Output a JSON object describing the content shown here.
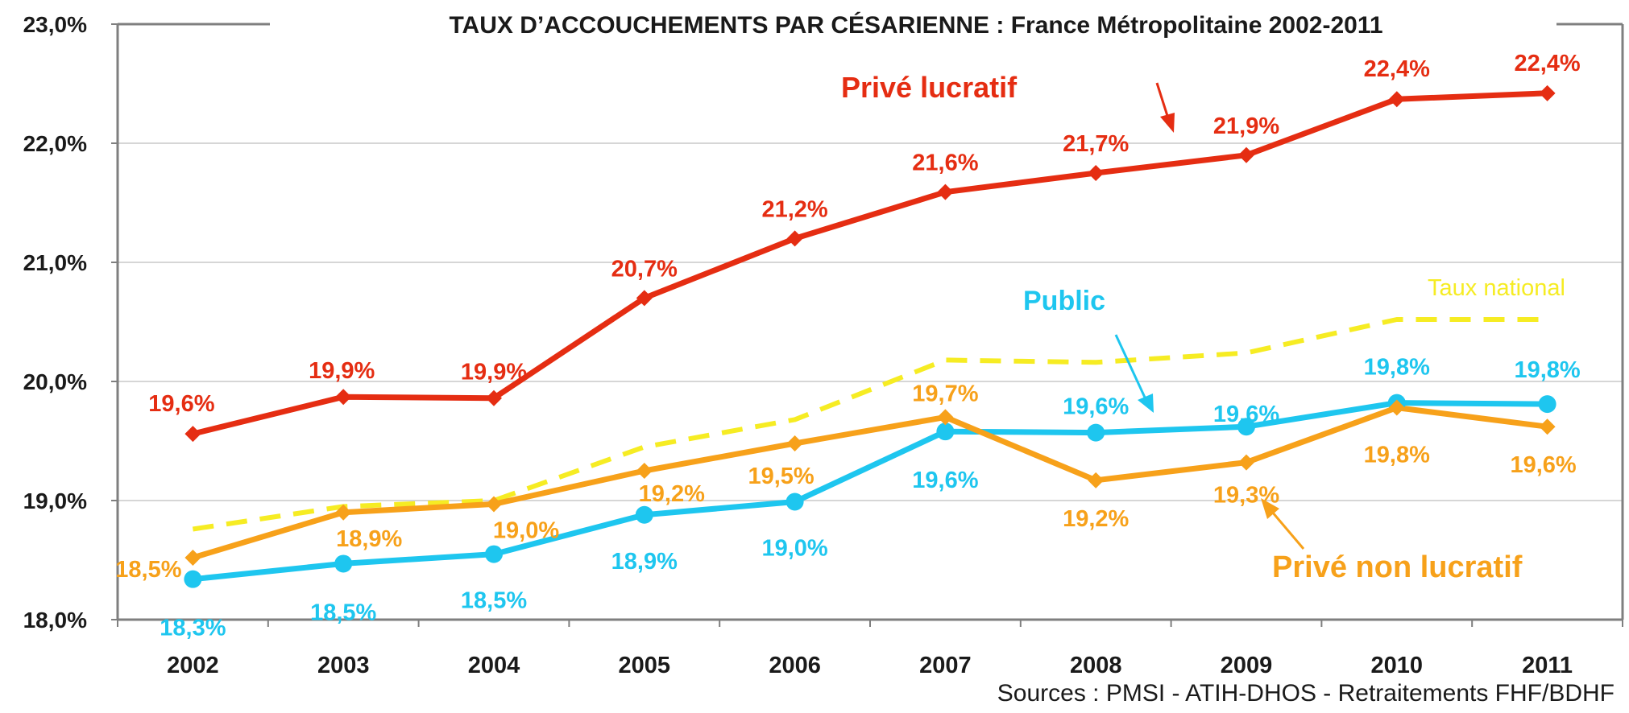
{
  "chart_data": {
    "type": "line",
    "title": "TAUX D’ACCOUCHEMENTS PAR CÉSARIENNE : France Métropolitaine 2002-2011",
    "source": "Sources : PMSI - ATIH-DHOS - Retraitements FHF/BDHF",
    "categories": [
      "2002",
      "2003",
      "2004",
      "2005",
      "2006",
      "2007",
      "2008",
      "2009",
      "2010",
      "2011"
    ],
    "ylim": [
      18.0,
      23.0
    ],
    "yticks": [
      {
        "value": 18.0,
        "label": "18,0%"
      },
      {
        "value": 19.0,
        "label": "19,0%"
      },
      {
        "value": 20.0,
        "label": "20,0%"
      },
      {
        "value": 21.0,
        "label": "21,0%"
      },
      {
        "value": 22.0,
        "label": "22,0%"
      },
      {
        "value": 23.0,
        "label": "23,0%"
      }
    ],
    "gridlines": true,
    "series": [
      {
        "key": "prive-lucratif",
        "name": "Privé lucratif",
        "color": "#e52d12",
        "marker": "diamond",
        "values": [
          19.56,
          19.87,
          19.86,
          20.7,
          21.2,
          21.59,
          21.75,
          21.9,
          22.37,
          22.42
        ],
        "labels": [
          "19,6%",
          "19,9%",
          "19,9%",
          "20,7%",
          "21,2%",
          "21,6%",
          "21,7%",
          "21,9%",
          "22,4%",
          "22,4%"
        ]
      },
      {
        "key": "public",
        "name": "Public",
        "color": "#1ec6ef",
        "marker": "circle",
        "values": [
          18.34,
          18.47,
          18.55,
          18.88,
          18.99,
          19.58,
          19.57,
          19.62,
          19.82,
          19.81
        ],
        "labels": [
          "18,3%",
          "18,5%",
          "18,5%",
          "18,9%",
          "19,0%",
          "19,6%",
          "19,6%",
          "19,6%",
          "19,8%",
          "19,8%"
        ]
      },
      {
        "key": "prive-non-lucratif",
        "name": "Privé non lucratif",
        "color": "#f7a11a",
        "marker": "diamond",
        "values": [
          18.52,
          18.9,
          18.97,
          19.25,
          19.48,
          19.7,
          19.17,
          19.32,
          19.78,
          19.62
        ],
        "labels": [
          "18,5%",
          "18,9%",
          "19,0%",
          "19,2%",
          "19,5%",
          "19,7%",
          "19,2%",
          "19,3%",
          "19,8%",
          "19,6%"
        ]
      },
      {
        "key": "taux-national",
        "name": "Taux national",
        "color": "#f6ec23",
        "dashed": true,
        "values": [
          18.76,
          18.95,
          19.0,
          19.45,
          19.68,
          20.18,
          20.16,
          20.24,
          20.52,
          20.52
        ]
      }
    ]
  }
}
